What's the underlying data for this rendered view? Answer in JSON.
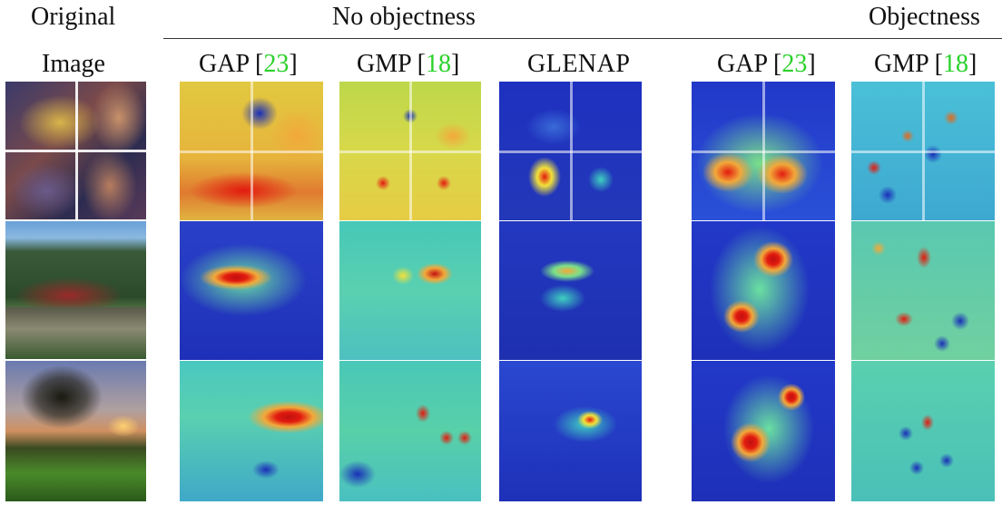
{
  "headers": {
    "original_line1": "Original",
    "original_line2": "Image",
    "group_no_objectness": "No objectness",
    "group_objectness": "Objectness",
    "columns": [
      {
        "method": "GAP",
        "ref_open": "[",
        "ref_num": "23",
        "ref_close": "]"
      },
      {
        "method": "GMP",
        "ref_open": "[",
        "ref_num": "18",
        "ref_close": "]"
      },
      {
        "method": "GLENAP",
        "ref_open": "",
        "ref_num": "",
        "ref_close": ""
      },
      {
        "method": "GAP",
        "ref_open": "[",
        "ref_num": "23",
        "ref_close": "]"
      },
      {
        "method": "GMP",
        "ref_open": "[",
        "ref_num": "18",
        "ref_close": "]"
      }
    ]
  },
  "colors": {
    "reference_link": "#2bd12b",
    "heat_low": "#1a2fb8",
    "heat_mid": "#3fd0c0",
    "heat_yellow": "#f2e23a",
    "heat_high": "#e21b0f"
  },
  "rows": [
    {
      "content": "archers-collage"
    },
    {
      "content": "temple-landscape"
    },
    {
      "content": "tree-sunset"
    }
  ]
}
